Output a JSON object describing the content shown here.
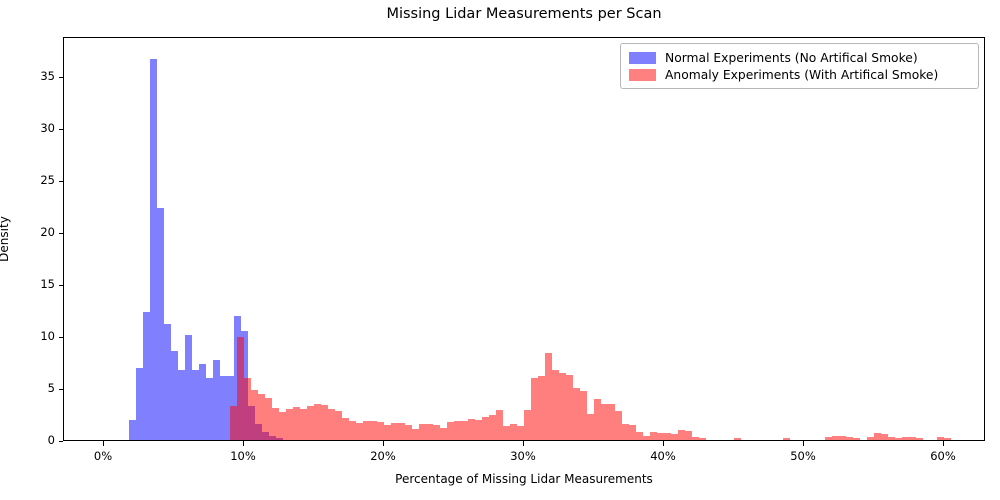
{
  "title": "Missing Lidar Measurements per Scan",
  "x_axis_label": "Percentage of Missing Lidar Measurements",
  "y_axis_label": "Density",
  "legend": {
    "items": [
      {
        "label": "Normal Experiments (No Artifical Smoke)",
        "color": "#8080ff"
      },
      {
        "label": "Anomaly Experiments (With Artifical Smoke)",
        "color": "#ff8080"
      }
    ]
  },
  "colors": {
    "normal_fill": "#8080ff",
    "anomaly_fill_rgba": "rgba(255,0,0,0.5)",
    "overlap_rendered": "#bf4080",
    "axis": "#000000",
    "legend_border": "#b7b7b7"
  },
  "chart_data": {
    "type": "bar",
    "subtype": "overlapping-histograms",
    "title": "Missing Lidar Measurements per Scan",
    "xlabel": "Percentage of Missing Lidar Measurements",
    "ylabel": "Density",
    "x_tick_labels": [
      "0%",
      "10%",
      "20%",
      "30%",
      "40%",
      "50%",
      "60%"
    ],
    "x_tick_values": [
      0,
      10,
      20,
      30,
      40,
      50,
      60
    ],
    "y_tick_labels": [
      "0",
      "5",
      "10",
      "15",
      "20",
      "25",
      "30",
      "35"
    ],
    "y_tick_values": [
      0,
      5,
      10,
      15,
      20,
      25,
      30,
      35
    ],
    "xlim": [
      -2.86,
      63.0
    ],
    "ylim": [
      0,
      38.85
    ],
    "grid": false,
    "legend_position": "upper right",
    "bin_width_pct": 0.5,
    "series": [
      {
        "name": "Normal Experiments (No Artifical Smoke)",
        "color": "#8080ff",
        "bins": [
          [
            1.8,
            1.9
          ],
          [
            2.3,
            6.9
          ],
          [
            2.8,
            12.3
          ],
          [
            3.3,
            36.6
          ],
          [
            3.8,
            22.3
          ],
          [
            4.3,
            11.2
          ],
          [
            4.8,
            8.6
          ],
          [
            5.3,
            6.7
          ],
          [
            5.8,
            10.1
          ],
          [
            6.3,
            6.7
          ],
          [
            6.8,
            7.3
          ],
          [
            7.3,
            6.0
          ],
          [
            7.8,
            7.7
          ],
          [
            8.3,
            6.2
          ],
          [
            8.8,
            6.2
          ],
          [
            9.3,
            11.9
          ],
          [
            9.8,
            10.5
          ],
          [
            10.3,
            3.3
          ],
          [
            10.8,
            1.5
          ],
          [
            11.3,
            0.8
          ],
          [
            11.8,
            0.4
          ],
          [
            12.3,
            0.2
          ]
        ]
      },
      {
        "name": "Anomaly Experiments (With Artifical Smoke)",
        "color": "rgba(255,0,0,0.5)",
        "bins": [
          [
            9.0,
            3.3
          ],
          [
            9.5,
            9.9
          ],
          [
            10.0,
            6.0
          ],
          [
            10.5,
            4.8
          ],
          [
            11.0,
            4.4
          ],
          [
            11.5,
            4.0
          ],
          [
            12.0,
            3.1
          ],
          [
            12.5,
            2.7
          ],
          [
            13.0,
            3.0
          ],
          [
            13.5,
            3.2
          ],
          [
            14.0,
            3.0
          ],
          [
            14.5,
            3.3
          ],
          [
            15.0,
            3.5
          ],
          [
            15.5,
            3.4
          ],
          [
            16.0,
            3.0
          ],
          [
            16.5,
            2.8
          ],
          [
            17.0,
            2.1
          ],
          [
            17.5,
            1.8
          ],
          [
            18.0,
            1.6
          ],
          [
            18.5,
            1.8
          ],
          [
            19.0,
            1.8
          ],
          [
            19.5,
            1.7
          ],
          [
            20.0,
            1.4
          ],
          [
            20.5,
            1.6
          ],
          [
            21.0,
            1.6
          ],
          [
            21.5,
            1.4
          ],
          [
            22.0,
            1.1
          ],
          [
            22.5,
            1.5
          ],
          [
            23.0,
            1.5
          ],
          [
            23.5,
            1.4
          ],
          [
            24.0,
            1.2
          ],
          [
            24.5,
            1.7
          ],
          [
            25.0,
            1.8
          ],
          [
            25.5,
            1.8
          ],
          [
            26.0,
            2.0
          ],
          [
            26.5,
            1.9
          ],
          [
            27.0,
            2.2
          ],
          [
            27.5,
            2.4
          ],
          [
            28.0,
            2.9
          ],
          [
            28.5,
            1.3
          ],
          [
            29.0,
            1.5
          ],
          [
            29.5,
            1.3
          ],
          [
            30.0,
            2.9
          ],
          [
            30.5,
            6.0
          ],
          [
            31.0,
            6.2
          ],
          [
            31.5,
            8.4
          ],
          [
            32.0,
            6.7
          ],
          [
            32.5,
            6.4
          ],
          [
            33.0,
            6.3
          ],
          [
            33.5,
            5.0
          ],
          [
            34.0,
            4.7
          ],
          [
            34.5,
            2.5
          ],
          [
            35.0,
            3.9
          ],
          [
            35.5,
            3.5
          ],
          [
            36.0,
            3.5
          ],
          [
            36.5,
            2.8
          ],
          [
            37.0,
            1.5
          ],
          [
            37.5,
            1.4
          ],
          [
            38.0,
            0.8
          ],
          [
            38.5,
            0.4
          ],
          [
            39.0,
            0.8
          ],
          [
            39.5,
            0.65
          ],
          [
            40.0,
            0.7
          ],
          [
            40.5,
            0.55
          ],
          [
            41.0,
            0.95
          ],
          [
            41.5,
            0.9
          ],
          [
            42.0,
            0.3
          ],
          [
            42.5,
            0.2
          ],
          [
            45.0,
            0.2
          ],
          [
            48.5,
            0.15
          ],
          [
            51.5,
            0.3
          ],
          [
            52.0,
            0.35
          ],
          [
            52.5,
            0.35
          ],
          [
            53.0,
            0.3
          ],
          [
            53.5,
            0.2
          ],
          [
            54.5,
            0.3
          ],
          [
            55.0,
            0.65
          ],
          [
            55.5,
            0.6
          ],
          [
            56.0,
            0.25
          ],
          [
            56.5,
            0.2
          ],
          [
            57.0,
            0.25
          ],
          [
            57.5,
            0.25
          ],
          [
            58.0,
            0.2
          ],
          [
            59.5,
            0.25
          ],
          [
            60.0,
            0.2
          ]
        ]
      }
    ]
  }
}
